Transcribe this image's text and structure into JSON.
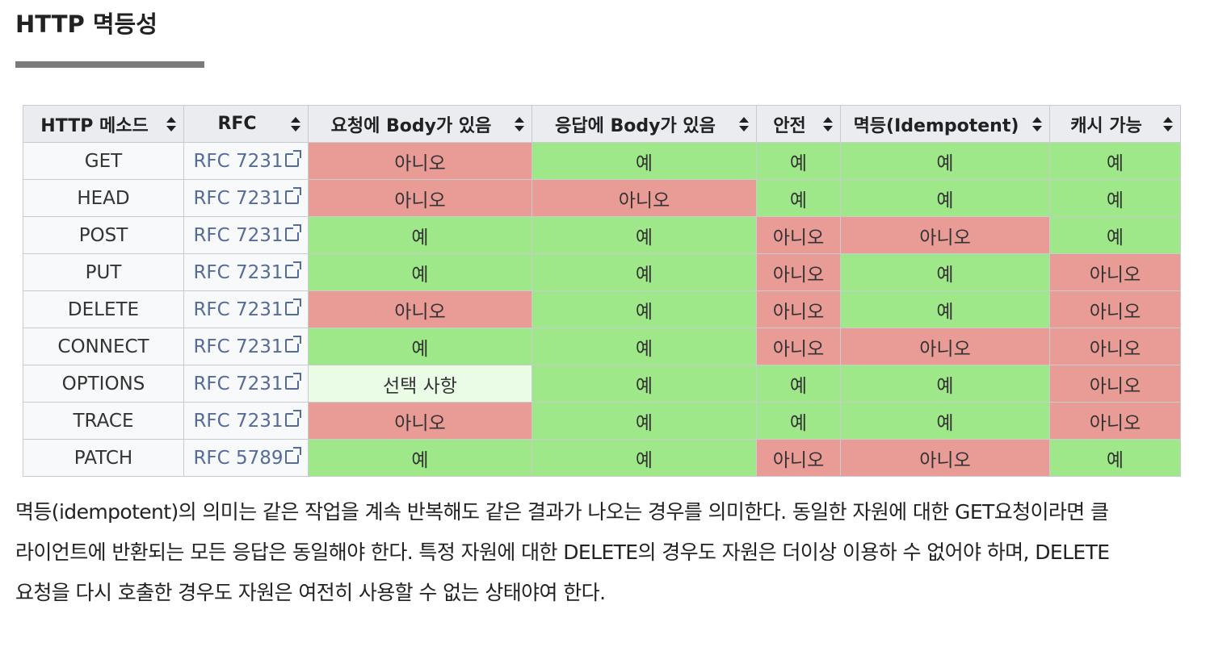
{
  "heading": "HTTP 멱등성",
  "table": {
    "headers": [
      "HTTP 메소드",
      "RFC",
      "요청에 Body가 있음",
      "응답에 Body가 있음",
      "안전",
      "멱등(Idempotent)",
      "캐시 가능"
    ],
    "rows": [
      {
        "method": "GET",
        "rfc": "RFC 7231",
        "request_body": "아니오",
        "response_body": "예",
        "safe": "예",
        "idempotent": "예",
        "cacheable": "예"
      },
      {
        "method": "HEAD",
        "rfc": "RFC 7231",
        "request_body": "아니오",
        "response_body": "아니오",
        "safe": "예",
        "idempotent": "예",
        "cacheable": "예"
      },
      {
        "method": "POST",
        "rfc": "RFC 7231",
        "request_body": "예",
        "response_body": "예",
        "safe": "아니오",
        "idempotent": "아니오",
        "cacheable": "예"
      },
      {
        "method": "PUT",
        "rfc": "RFC 7231",
        "request_body": "예",
        "response_body": "예",
        "safe": "아니오",
        "idempotent": "예",
        "cacheable": "아니오"
      },
      {
        "method": "DELETE",
        "rfc": "RFC 7231",
        "request_body": "아니오",
        "response_body": "예",
        "safe": "아니오",
        "idempotent": "예",
        "cacheable": "아니오"
      },
      {
        "method": "CONNECT",
        "rfc": "RFC 7231",
        "request_body": "예",
        "response_body": "예",
        "safe": "아니오",
        "idempotent": "아니오",
        "cacheable": "아니오"
      },
      {
        "method": "OPTIONS",
        "rfc": "RFC 7231",
        "request_body": "선택 사항",
        "response_body": "예",
        "safe": "예",
        "idempotent": "예",
        "cacheable": "아니오"
      },
      {
        "method": "TRACE",
        "rfc": "RFC 7231",
        "request_body": "아니오",
        "response_body": "예",
        "safe": "예",
        "idempotent": "예",
        "cacheable": "아니오"
      },
      {
        "method": "PATCH",
        "rfc": "RFC 5789",
        "request_body": "예",
        "response_body": "예",
        "safe": "아니오",
        "idempotent": "아니오",
        "cacheable": "예"
      }
    ]
  },
  "paragraph": {
    "lines": [
      "멱등(idempotent)의 의미는 같은 작업을 계속 반복해도 같은 결과가 나오는 경우를 의미한다. 동일한 자원에 대한 GET요청이라면 클",
      "라이언트에 반환되는 모든 응답은 동일해야 한다. 특정 자원에 대한 DELETE의 경우도 자원은 더이상 이용하 수 없어야 하며, DELETE",
      "요청을 다시 호출한 경우도 자원은 여전히 사용할 수 없는 상태야여 한다."
    ]
  },
  "colors": {
    "yes": "#9ee889",
    "no": "#e99b96",
    "optional": "#eafbe6",
    "header": "#eaecf0"
  }
}
